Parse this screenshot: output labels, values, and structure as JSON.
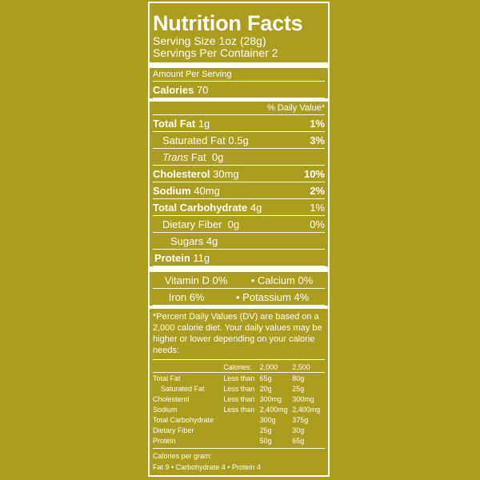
{
  "title": "Nutrition Facts",
  "serving_size": "Serving Size 1oz (28g)",
  "servings_per_container": "Servings Per Container 2",
  "amount_per_serving": "Amount Per Serving",
  "calories": {
    "label": "Calories",
    "value": "70"
  },
  "daily_value_header": "% Daily Value*",
  "nutrients": [
    {
      "label": "Total Fat",
      "amount": "1g",
      "dv": "1%"
    },
    {
      "label": "Saturated Fat",
      "amount": "0.5g",
      "dv": "3%"
    },
    {
      "label": "Trans",
      "label_suffix": "Fat",
      "amount": "0g",
      "dv": ""
    },
    {
      "label": "Cholesterol",
      "amount": "30mg",
      "dv": "10%"
    },
    {
      "label": "Sodium",
      "amount": "40mg",
      "dv": "2%"
    },
    {
      "label": "Total Carbohydrate",
      "amount": "4g",
      "dv": "1%"
    },
    {
      "label": "Dietary Fiber",
      "amount": "0g",
      "dv": "0%"
    },
    {
      "label": "Sugars",
      "amount": "4g",
      "dv": ""
    },
    {
      "label": "Protein",
      "amount": "11g",
      "dv": ""
    }
  ],
  "vitamins": [
    {
      "label": "Vitamin D 0%"
    },
    {
      "label": "Calcium 0%"
    },
    {
      "label": "Iron 6%"
    },
    {
      "label": "Potassium 4%"
    }
  ],
  "bullet": "•",
  "footnote": "*Percent Daily Values (DV) are based on a 2,000 calorie diet. Your daily values may be higher or lower depending on your calorie needs:",
  "dv_table": {
    "header": [
      "",
      "Calories:",
      "2,000",
      "2,500"
    ],
    "rows": [
      [
        "Total Fat",
        "Less than",
        "65g",
        "80g"
      ],
      [
        "Saturated Fat",
        "Less than",
        "20g",
        "25g"
      ],
      [
        "Cholesterol",
        "Less than",
        "300mg",
        "300mg"
      ],
      [
        "Sodium",
        "Less than",
        "2,400mg",
        "2,400mg"
      ],
      [
        "Total Carbohydrate",
        "",
        "300g",
        "375g"
      ],
      [
        "Dietary Fiber",
        "",
        "25g",
        "30g"
      ],
      [
        "Protein",
        "",
        "50g",
        "65g"
      ]
    ]
  },
  "calories_per_gram": "Calories per gram:",
  "calories_per_gram_values": "Fat 9 • Carbohydrate 4 • Protein 4",
  "colors": {
    "background": "#ad9d1e",
    "foreground": "#ffffff"
  }
}
